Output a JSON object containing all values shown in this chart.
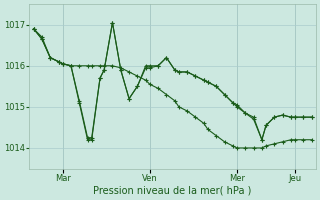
{
  "background_color": "#cce8e0",
  "grid_color": "#aacccc",
  "line_color": "#1a5c1a",
  "x_ticks_labels": [
    "Mar",
    "Ven",
    "Mer",
    "Jeu"
  ],
  "x_ticks_pos": [
    7,
    28,
    49,
    63
  ],
  "xlabel": "Pression niveau de la mer( hPa )",
  "ylim": [
    1013.5,
    1017.5
  ],
  "yticks": [
    1014,
    1015,
    1016,
    1017
  ],
  "series1_x": [
    0,
    2,
    4,
    6,
    7,
    9,
    11,
    13,
    14,
    16,
    17,
    19,
    21,
    23,
    25,
    27,
    28,
    30,
    32,
    34,
    35,
    37,
    39,
    41,
    42,
    44,
    46,
    48,
    49,
    51,
    53,
    55,
    56,
    58,
    60,
    62,
    63,
    65,
    67
  ],
  "series1_y": [
    1016.9,
    1016.65,
    1016.2,
    1016.1,
    1016.05,
    1016.0,
    1015.15,
    1014.25,
    1014.25,
    1015.7,
    1015.9,
    1017.05,
    1015.9,
    1015.2,
    1015.5,
    1016.0,
    1016.0,
    1016.0,
    1016.2,
    1015.9,
    1015.85,
    1015.85,
    1015.75,
    1015.65,
    1015.6,
    1015.5,
    1015.3,
    1015.1,
    1015.05,
    1014.85,
    1014.75,
    1014.2,
    1014.55,
    1014.75,
    1014.8,
    1014.75,
    1014.75,
    1014.75,
    1014.75
  ],
  "series2_x": [
    0,
    2,
    4,
    6,
    7,
    9,
    11,
    13,
    14,
    16,
    17,
    19,
    21,
    23,
    25,
    27,
    28,
    30,
    32,
    34,
    35,
    37,
    39,
    41,
    42,
    44,
    46,
    48,
    49,
    51,
    53,
    55,
    56,
    58,
    60,
    62,
    63,
    65,
    67
  ],
  "series2_y": [
    1016.9,
    1016.65,
    1016.2,
    1016.1,
    1016.05,
    1016.0,
    1016.0,
    1016.0,
    1016.0,
    1016.0,
    1016.0,
    1016.0,
    1015.95,
    1015.85,
    1015.75,
    1015.65,
    1015.55,
    1015.45,
    1015.3,
    1015.15,
    1015.0,
    1014.9,
    1014.75,
    1014.6,
    1014.45,
    1014.3,
    1014.15,
    1014.05,
    1014.0,
    1014.0,
    1014.0,
    1014.0,
    1014.05,
    1014.1,
    1014.15,
    1014.2,
    1014.2,
    1014.2,
    1014.2
  ],
  "series3_x": [
    0,
    2,
    4,
    6,
    7,
    9,
    11,
    13,
    14,
    16,
    17,
    19,
    21,
    23,
    25,
    27,
    28,
    30,
    32,
    34,
    35,
    37,
    39,
    41,
    42,
    44,
    46,
    48,
    49,
    51,
    53,
    55,
    56,
    58,
    60,
    62,
    63,
    65,
    67
  ],
  "series3_y": [
    1016.9,
    1016.7,
    1016.2,
    1016.1,
    1016.05,
    1016.0,
    1015.1,
    1014.2,
    1014.2,
    1015.7,
    1015.9,
    1017.05,
    1015.9,
    1015.2,
    1015.5,
    1015.95,
    1015.95,
    1016.0,
    1016.2,
    1015.9,
    1015.85,
    1015.85,
    1015.75,
    1015.65,
    1015.6,
    1015.5,
    1015.3,
    1015.1,
    1015.0,
    1014.85,
    1014.7,
    1014.2,
    1014.55,
    1014.75,
    1014.8,
    1014.75,
    1014.75,
    1014.75,
    1014.75
  ]
}
